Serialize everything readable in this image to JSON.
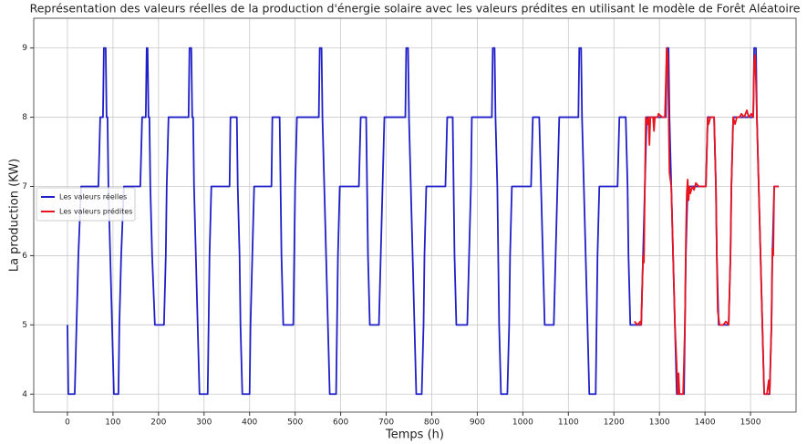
{
  "chart_data": {
    "type": "line",
    "title": "Représentation des valeurs réelles de la production d'énergie solaire avec les valeurs prédites en utilisant le modèle de Forêt Aléatoire",
    "xlabel": "Temps (h)",
    "ylabel": "La production (KW)",
    "xlim": [
      -74,
      1600
    ],
    "ylim": [
      3.74,
      9.43
    ],
    "xticks": [
      0,
      100,
      200,
      300,
      400,
      500,
      600,
      700,
      800,
      900,
      1000,
      1100,
      1200,
      1300,
      1400,
      1500
    ],
    "yticks": [
      4,
      5,
      6,
      7,
      8,
      9
    ],
    "grid": true,
    "legend": "center left",
    "series": [
      {
        "name": "Les valeurs réelles",
        "color": "#1f1fc8",
        "x": [
          0,
          2,
          16,
          20,
          24,
          30,
          68,
          72,
          78,
          80,
          84,
          86,
          88,
          90,
          94,
          98,
          102,
          112,
          114,
          118,
          124,
          160,
          164,
          172,
          174,
          176,
          178,
          180,
          182,
          186,
          192,
          212,
          216,
          218,
          222,
          266,
          268,
          272,
          274,
          276,
          278,
          282,
          286,
          290,
          308,
          310,
          312,
          316,
          356,
          358,
          372,
          374,
          378,
          380,
          384,
          400,
          402,
          406,
          410,
          448,
          450,
          466,
          468,
          470,
          474,
          496,
          498,
          500,
          504,
          552,
          554,
          558,
          560,
          564,
          568,
          572,
          576,
          590,
          592,
          594,
          598,
          640,
          644,
          656,
          658,
          660,
          664,
          684,
          688,
          692,
          696,
          742,
          744,
          748,
          750,
          754,
          758,
          762,
          766,
          778,
          782,
          784,
          788,
          830,
          834,
          846,
          848,
          850,
          854,
          878,
          882,
          886,
          888,
          932,
          934,
          938,
          940,
          944,
          946,
          948,
          952,
          966,
          970,
          972,
          976,
          1018,
          1022,
          1036,
          1040,
          1044,
          1048,
          1068,
          1072,
          1076,
          1080,
          1122,
          1124,
          1128,
          1130,
          1134,
          1138,
          1142,
          1146,
          1160,
          1162,
          1164,
          1168,
          1208,
          1212,
          1226,
          1230,
          1232,
          1236,
          1260,
          1264,
          1268,
          1272,
          1314,
          1316,
          1320,
          1322,
          1326,
          1330,
          1334,
          1338,
          1354,
          1356,
          1358,
          1362,
          1402,
          1406,
          1420,
          1424,
          1426,
          1430,
          1452,
          1456,
          1458,
          1462,
          1506,
          1508,
          1512,
          1514,
          1518,
          1522,
          1526,
          1530,
          1542,
          1546,
          1548,
          1552,
          1562
        ],
        "values": [
          5,
          4,
          4,
          5,
          6,
          7,
          7,
          8,
          8,
          9,
          9,
          8,
          8,
          7,
          6,
          5,
          4,
          4,
          5,
          6,
          7,
          7,
          8,
          8,
          9,
          9,
          8,
          8,
          7,
          6,
          5,
          5,
          6,
          7,
          8,
          8,
          9,
          9,
          8,
          8,
          7,
          6,
          5,
          4,
          4,
          5,
          6,
          7,
          7,
          8,
          8,
          7,
          6,
          5,
          4,
          4,
          5,
          6,
          7,
          7,
          8,
          8,
          7,
          6,
          5,
          5,
          6,
          7,
          8,
          8,
          9,
          9,
          8,
          7,
          6,
          5,
          4,
          4,
          5,
          6,
          7,
          7,
          8,
          8,
          7,
          6,
          5,
          5,
          6,
          7,
          8,
          8,
          9,
          9,
          8,
          7,
          6,
          5,
          4,
          4,
          5,
          6,
          7,
          7,
          8,
          8,
          7,
          6,
          5,
          5,
          6,
          7,
          8,
          8,
          9,
          9,
          8,
          7,
          6,
          5,
          4,
          4,
          5,
          6,
          7,
          7,
          8,
          8,
          7,
          6,
          5,
          5,
          6,
          7,
          8,
          8,
          9,
          9,
          8,
          7,
          6,
          5,
          4,
          4,
          5,
          6,
          7,
          7,
          8,
          8,
          7,
          6,
          5,
          5,
          6,
          7,
          8,
          8,
          9,
          9,
          8,
          7,
          6,
          5,
          4,
          4,
          5,
          6,
          7,
          7,
          8,
          8,
          7,
          6,
          5,
          5,
          6,
          7,
          8,
          8,
          9,
          9,
          8,
          7,
          6,
          5,
          4,
          4,
          5,
          6,
          7,
          7
        ]
      },
      {
        "name": "Les valeurs prédites",
        "color": "#e8141e",
        "x": [
          1245,
          1252,
          1258,
          1260,
          1264,
          1266,
          1268,
          1270,
          1274,
          1276,
          1278,
          1280,
          1286,
          1288,
          1290,
          1296,
          1298,
          1306,
          1312,
          1316,
          1318,
          1320,
          1322,
          1326,
          1330,
          1334,
          1338,
          1340,
          1342,
          1344,
          1352,
          1356,
          1358,
          1360,
          1362,
          1364,
          1366,
          1368,
          1372,
          1376,
          1380,
          1386,
          1396,
          1402,
          1406,
          1408,
          1412,
          1420,
          1424,
          1426,
          1428,
          1430,
          1432,
          1440,
          1446,
          1452,
          1456,
          1458,
          1462,
          1466,
          1470,
          1476,
          1480,
          1486,
          1492,
          1496,
          1502,
          1506,
          1508,
          1510,
          1512,
          1514,
          1518,
          1522,
          1526,
          1530,
          1536,
          1540,
          1542,
          1546,
          1548,
          1550,
          1552,
          1562
        ],
        "values": [
          5.05,
          5,
          5.05,
          5,
          6,
          5.9,
          7,
          8,
          7.9,
          8,
          7.6,
          8,
          8,
          7.8,
          8,
          8,
          8.05,
          8,
          8,
          9,
          8.9,
          8.1,
          7.2,
          7,
          6,
          5,
          4.4,
          4,
          4.3,
          4,
          4,
          5,
          6.2,
          6.9,
          7.1,
          6.8,
          7,
          6.9,
          7,
          6.95,
          7.05,
          7,
          7,
          7,
          8,
          7.9,
          8,
          8,
          7,
          6,
          5.2,
          5.1,
          5,
          5,
          5.05,
          5,
          6,
          7,
          8,
          7.9,
          8,
          8,
          8.05,
          8,
          8.1,
          8,
          8.05,
          8,
          8.8,
          8.9,
          8.5,
          8,
          7,
          6,
          5,
          4,
          4,
          4.2,
          4,
          5,
          6.1,
          6,
          7,
          7
        ]
      }
    ]
  }
}
